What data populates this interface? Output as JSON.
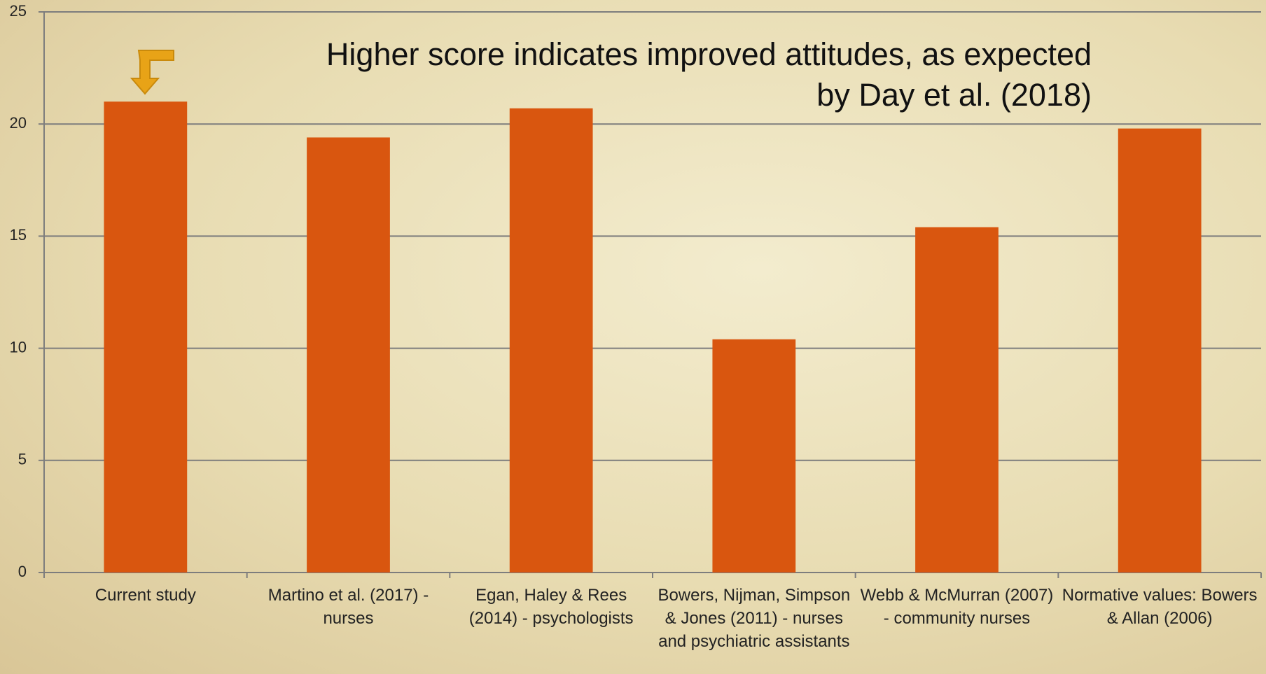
{
  "chart_data": {
    "type": "bar",
    "annotation": [
      "Higher score indicates improved attitudes, as expected",
      "by Day et al. (2018)"
    ],
    "categories": [
      "Current study",
      "Martino et al. (2017) - nurses",
      "Egan, Haley & Rees (2014) - psychologists",
      "Bowers, Nijman, Simpson & Jones (2011) - nurses and psychiatric assistants",
      "Webb & McMurran (2007) - community nurses",
      "Normative values: Bowers & Allan (2006)"
    ],
    "values": [
      21.0,
      19.4,
      20.7,
      10.4,
      15.4,
      19.8
    ],
    "color": "#d9560f",
    "ylim": [
      0,
      25
    ],
    "yticks": [
      0,
      5,
      10,
      15,
      20,
      25
    ],
    "grid": true
  }
}
